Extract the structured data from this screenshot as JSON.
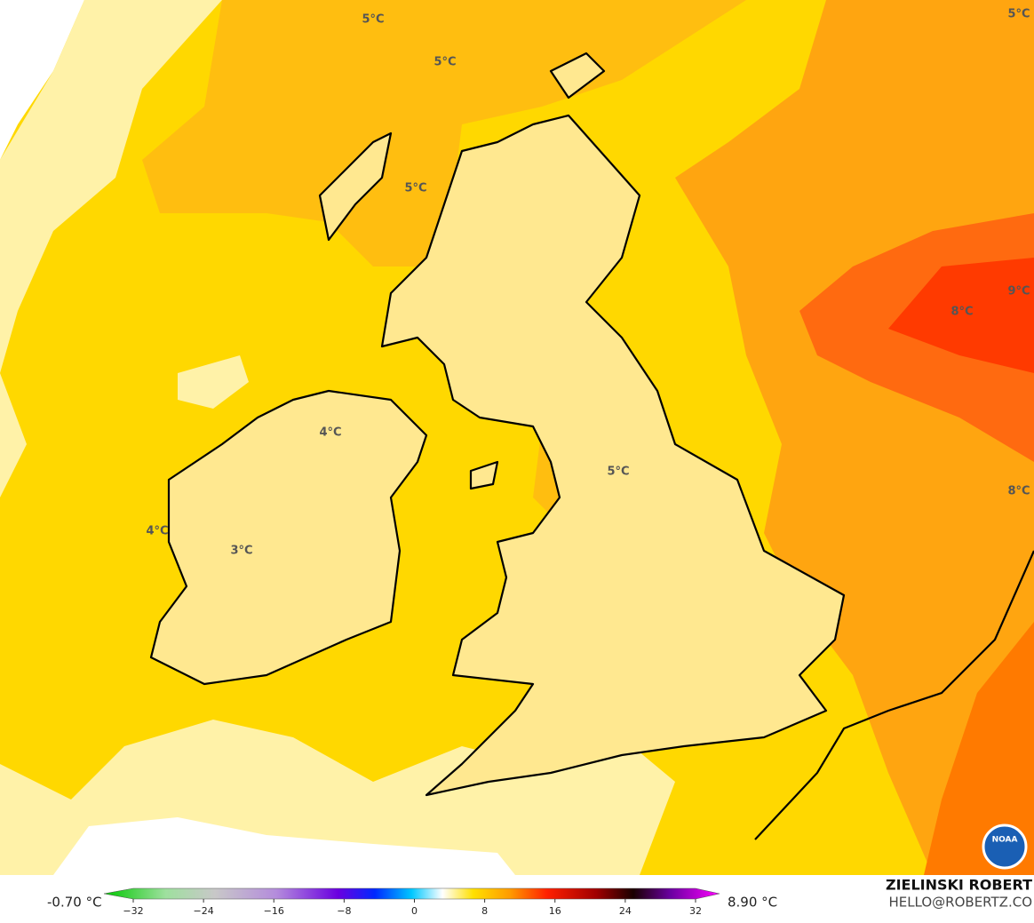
{
  "map": {
    "contour_labels": [
      "5°C",
      "5°C",
      "5°C",
      "5°C",
      "9°C",
      "8°C",
      "8°C",
      "4°C",
      "4°C",
      "5°C",
      "3°C"
    ],
    "logo": "NOAA"
  },
  "colorbar": {
    "min_label": "-0.70 °C",
    "max_label": "8.90 °C",
    "range": [
      -32,
      32
    ],
    "ticks": [
      {
        "value": -32,
        "label": "−32"
      },
      {
        "value": -24,
        "label": "−24"
      },
      {
        "value": -16,
        "label": "−16"
      },
      {
        "value": -8,
        "label": "−8"
      },
      0,
      8,
      16,
      24,
      32
    ]
  },
  "credit": {
    "name": "ZIELINSKI ROBERT",
    "email": "HELLO@ROBERTZ.CO"
  }
}
